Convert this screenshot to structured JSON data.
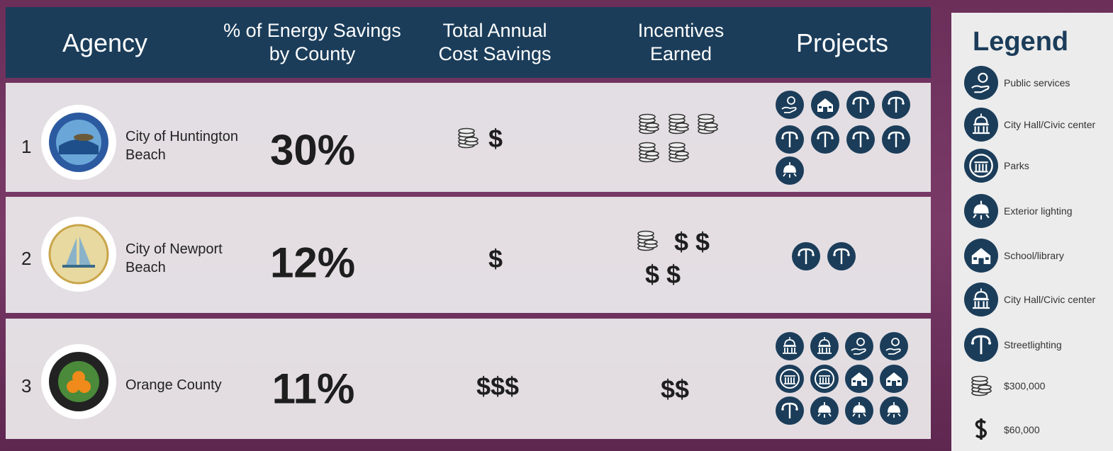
{
  "header": {
    "columns": [
      "Agency",
      "% of Energy Savings by County",
      "Total Annual Cost Savings",
      "Incentives Earned",
      "Projects"
    ]
  },
  "table": {
    "rows": [
      {
        "rank": "1",
        "agency": "City of Huntington Beach",
        "percent": "30%",
        "cost_savings": "$"
      },
      {
        "rank": "2",
        "agency": "City of Newport Beach",
        "percent": "12%",
        "cost_savings": "$",
        "incentives": [
          "$ $",
          "$ $"
        ]
      },
      {
        "rank": "3",
        "agency": "Orange County",
        "percent": "11%",
        "cost_savings": "$$$",
        "incentives": [
          "$$"
        ]
      }
    ]
  },
  "legend": {
    "title": "Legend",
    "items": [
      "Public services",
      "City Hall/Civic center",
      "Parks",
      "Exterior lighting",
      "School/library",
      "City Hall/Civic center",
      "Streetlighting",
      "$300,000",
      "$60,000"
    ]
  }
}
